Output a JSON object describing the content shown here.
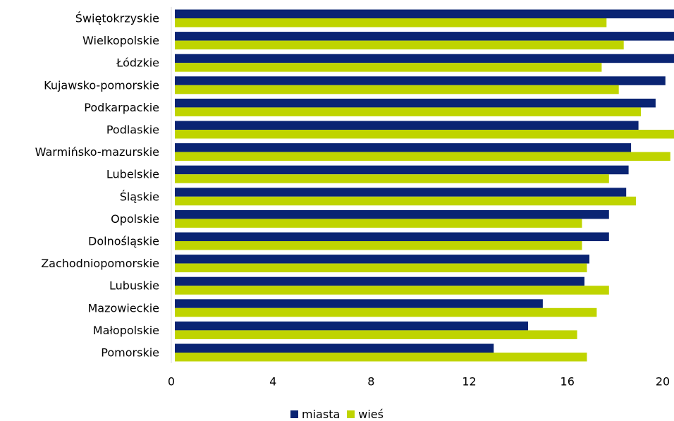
{
  "chart_data": {
    "type": "bar",
    "orientation": "horizontal",
    "categories": [
      "Świętokrzyskie",
      "Wielkopolskie",
      "Łódzkie",
      "Kujawsko-pomorskie",
      "Podkarpackie",
      "Podlaskie",
      "Warmińsko-mazurskie",
      "Lubelskie",
      "Śląskie",
      "Opolskie",
      "Dolnośląskie",
      "Zachodniopomorskie",
      "Lubuskie",
      "Mazowieckie",
      "Małopolskie",
      "Pomorskie"
    ],
    "series": [
      {
        "name": "miasta",
        "color": "#0a2473",
        "values": [
          20.6,
          20.5,
          20.6,
          20.0,
          19.6,
          18.9,
          18.6,
          18.5,
          18.4,
          17.7,
          17.7,
          16.9,
          16.7,
          15.0,
          14.4,
          13.0
        ]
      },
      {
        "name": "wieś",
        "color": "#bfd400",
        "values": [
          17.6,
          18.3,
          17.4,
          18.1,
          19.0,
          20.5,
          20.2,
          17.7,
          18.8,
          16.6,
          16.6,
          16.8,
          17.7,
          17.2,
          16.4,
          16.8
        ]
      }
    ],
    "xlim": [
      0,
      20.35
    ],
    "xticks": [
      0,
      4,
      8,
      12,
      16,
      20
    ],
    "xlabel": "",
    "ylabel": "",
    "grid": false,
    "legend": "bottom"
  }
}
